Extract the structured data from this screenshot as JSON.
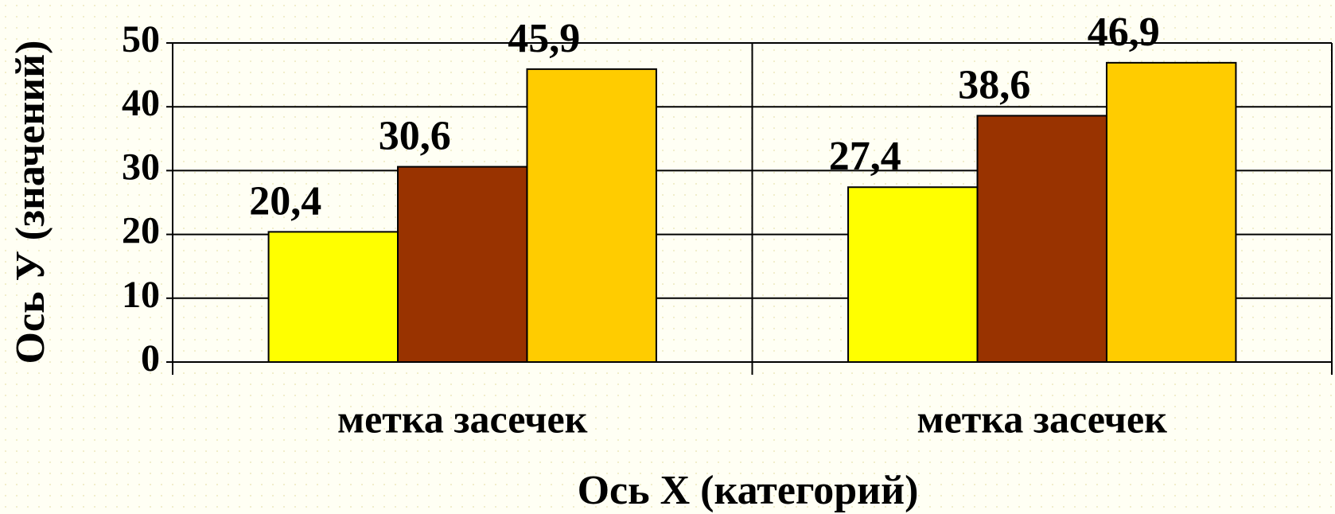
{
  "chart_data": {
    "type": "bar",
    "categories": [
      "метка засечек",
      "метка засечек"
    ],
    "series": [
      {
        "color": "#ffff00",
        "values": [
          20.4,
          27.4
        ],
        "value_labels": [
          "20,4",
          "27,4"
        ]
      },
      {
        "color": "#993300",
        "values": [
          30.6,
          38.6
        ],
        "value_labels": [
          "30,6",
          "38,6"
        ]
      },
      {
        "color": "#ffcc00",
        "values": [
          45.9,
          46.9
        ],
        "value_labels": [
          "45,9",
          "46,9"
        ]
      }
    ],
    "x_label": "Ось X (категорий)",
    "y_label": "Ось У (значений)",
    "ylim": [
      0,
      50
    ],
    "yticks": [
      0,
      10,
      20,
      30,
      40,
      50
    ],
    "grid": true
  }
}
